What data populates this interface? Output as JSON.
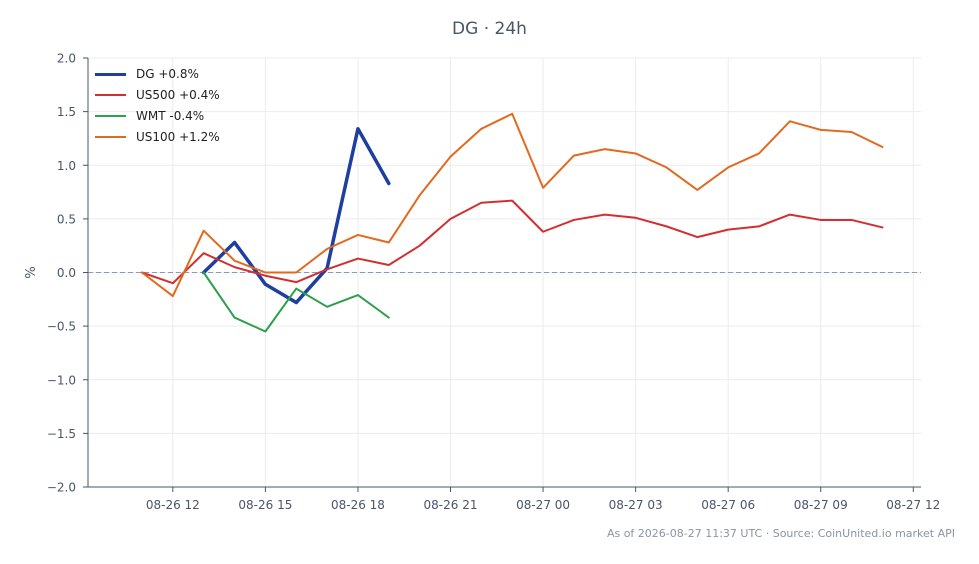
{
  "chart_data": {
    "type": "line",
    "title": "DG · 24h",
    "ylabel": "%",
    "xlabel": "",
    "ylim": [
      -2.0,
      2.0
    ],
    "yticks": [
      -2.0,
      -1.5,
      -1.0,
      -0.5,
      0.0,
      0.5,
      1.0,
      1.5,
      2.0
    ],
    "ytick_labels": [
      "−2.0",
      "−1.5",
      "−1.0",
      "−0.5",
      "0.0",
      "0.5",
      "1.0",
      "1.5",
      "2.0"
    ],
    "xlim": [
      "2026-08-26 09:15",
      "2026-08-27 12:15"
    ],
    "xticks": [
      "2026-08-26 12:00",
      "2026-08-26 15:00",
      "2026-08-26 18:00",
      "2026-08-26 21:00",
      "2026-08-27 00:00",
      "2026-08-27 03:00",
      "2026-08-27 06:00",
      "2026-08-27 09:00",
      "2026-08-27 12:00"
    ],
    "xtick_labels": [
      "08-26 12",
      "08-26 15",
      "08-26 18",
      "08-26 21",
      "08-27 00",
      "08-27 03",
      "08-27 06",
      "08-27 09",
      "08-27 12"
    ],
    "grid": true,
    "zero_line": true,
    "legend_position": "top-left",
    "series": [
      {
        "name": "DG +0.8%",
        "color": "#1f3fa0",
        "width": 3.5,
        "x": [
          "2026-08-26 13:00",
          "2026-08-26 14:00",
          "2026-08-26 15:00",
          "2026-08-26 16:00",
          "2026-08-26 17:00",
          "2026-08-26 18:00",
          "2026-08-26 19:00"
        ],
        "y": [
          0.0,
          0.28,
          -0.11,
          -0.28,
          0.04,
          1.34,
          0.83
        ]
      },
      {
        "name": "US500 +0.4%",
        "color": "#d23030",
        "width": 2,
        "x": [
          "2026-08-26 11:00",
          "2026-08-26 12:00",
          "2026-08-26 13:00",
          "2026-08-26 14:00",
          "2026-08-26 15:00",
          "2026-08-26 16:00",
          "2026-08-26 17:00",
          "2026-08-26 18:00",
          "2026-08-26 19:00",
          "2026-08-26 20:00",
          "2026-08-26 21:00",
          "2026-08-26 22:00",
          "2026-08-26 23:00",
          "2026-08-27 00:00",
          "2026-08-27 01:00",
          "2026-08-27 02:00",
          "2026-08-27 03:00",
          "2026-08-27 04:00",
          "2026-08-27 05:00",
          "2026-08-27 06:00",
          "2026-08-27 07:00",
          "2026-08-27 08:00",
          "2026-08-27 09:00",
          "2026-08-27 10:00",
          "2026-08-27 11:00"
        ],
        "y": [
          0.0,
          -0.1,
          0.18,
          0.05,
          -0.03,
          -0.09,
          0.03,
          0.13,
          0.07,
          0.25,
          0.5,
          0.65,
          0.67,
          0.38,
          0.49,
          0.54,
          0.51,
          0.43,
          0.33,
          0.4,
          0.43,
          0.54,
          0.49,
          0.49,
          0.42
        ]
      },
      {
        "name": "WMT -0.4%",
        "color": "#2ca04a",
        "width": 2,
        "x": [
          "2026-08-26 13:00",
          "2026-08-26 14:00",
          "2026-08-26 15:00",
          "2026-08-26 16:00",
          "2026-08-26 17:00",
          "2026-08-26 18:00",
          "2026-08-26 19:00"
        ],
        "y": [
          0.0,
          -0.42,
          -0.55,
          -0.15,
          -0.32,
          -0.21,
          -0.42
        ]
      },
      {
        "name": "US100 +1.2%",
        "color": "#e06a1f",
        "width": 2,
        "x": [
          "2026-08-26 11:00",
          "2026-08-26 12:00",
          "2026-08-26 13:00",
          "2026-08-26 14:00",
          "2026-08-26 15:00",
          "2026-08-26 16:00",
          "2026-08-26 17:00",
          "2026-08-26 18:00",
          "2026-08-26 19:00",
          "2026-08-26 20:00",
          "2026-08-26 21:00",
          "2026-08-26 22:00",
          "2026-08-26 23:00",
          "2026-08-27 00:00",
          "2026-08-27 01:00",
          "2026-08-27 02:00",
          "2026-08-27 03:00",
          "2026-08-27 04:00",
          "2026-08-27 05:00",
          "2026-08-27 06:00",
          "2026-08-27 07:00",
          "2026-08-27 08:00",
          "2026-08-27 09:00",
          "2026-08-27 10:00",
          "2026-08-27 11:00"
        ],
        "y": [
          0.0,
          -0.22,
          0.39,
          0.11,
          0.0,
          0.0,
          0.22,
          0.35,
          0.28,
          0.72,
          1.08,
          1.34,
          1.48,
          0.79,
          1.09,
          1.15,
          1.11,
          0.98,
          0.77,
          0.98,
          1.11,
          1.41,
          1.33,
          1.31,
          1.17
        ]
      }
    ],
    "footer": "As of 2026-08-27 11:37 UTC · Source: CoinUnited.io market API"
  }
}
